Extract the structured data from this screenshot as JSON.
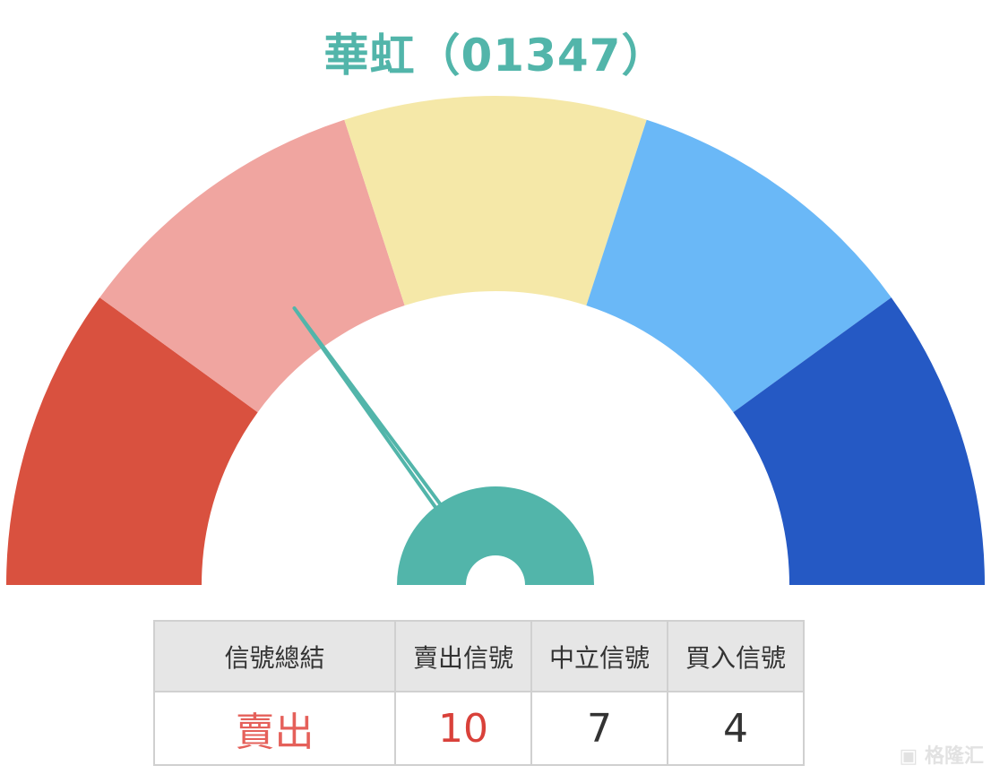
{
  "title": "華虹（01347）",
  "colors": {
    "accent": "#52b5aa",
    "sell": "#e5605a"
  },
  "chart_data": {
    "type": "gauge",
    "title": "華虹（01347）",
    "segments": [
      {
        "color": "#d9513f"
      },
      {
        "color": "#f0a5a0"
      },
      {
        "color": "#f5e8a8"
      },
      {
        "color": "#6ab8f7"
      },
      {
        "color": "#2559c4"
      }
    ],
    "needle_fraction": 0.3,
    "needle_color": "#52b5aa"
  },
  "table": {
    "headers": [
      "信號總結",
      "賣出信號",
      "中立信號",
      "買入信號"
    ],
    "values": [
      "賣出",
      "10",
      "7",
      "4"
    ]
  },
  "watermark": "格隆汇"
}
